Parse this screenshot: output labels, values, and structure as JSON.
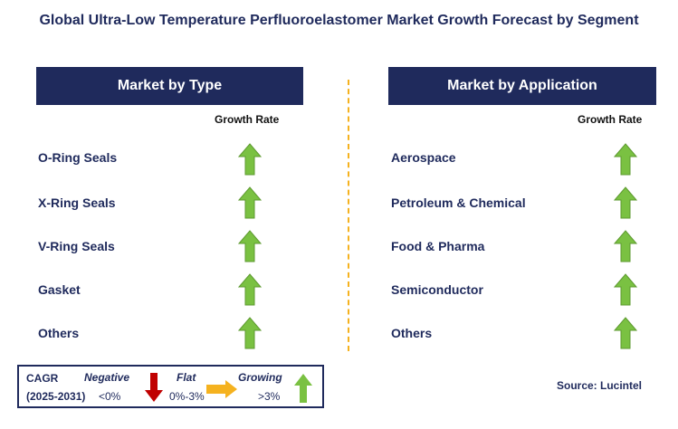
{
  "title": "Global Ultra-Low Temperature Perfluoroelastomer Market Growth Forecast by Segment",
  "left_panel": {
    "header": "Market by Type",
    "growth_label": "Growth Rate",
    "rows": [
      {
        "label": "O-Ring Seals",
        "trend": "growing"
      },
      {
        "label": "X-Ring Seals",
        "trend": "growing"
      },
      {
        "label": "V-Ring Seals",
        "trend": "growing"
      },
      {
        "label": "Gasket",
        "trend": "growing"
      },
      {
        "label": "Others",
        "trend": "growing"
      }
    ]
  },
  "right_panel": {
    "header": "Market by Application",
    "growth_label": "Growth Rate",
    "rows": [
      {
        "label": "Aerospace",
        "trend": "growing"
      },
      {
        "label": "Petroleum & Chemical",
        "trend": "growing"
      },
      {
        "label": "Food & Pharma",
        "trend": "growing"
      },
      {
        "label": "Semiconductor",
        "trend": "growing"
      },
      {
        "label": "Others",
        "trend": "growing"
      }
    ]
  },
  "legend": {
    "cagr": "CAGR",
    "period": "(2025-2031)",
    "negative": {
      "label": "Negative",
      "range": "<0%",
      "icon": "down-arrow-icon",
      "color": "#c00000"
    },
    "flat": {
      "label": "Flat",
      "range": "0%-3%",
      "icon": "right-arrow-icon",
      "color": "#f5b21f"
    },
    "growing": {
      "label": "Growing",
      "range": ">3%",
      "icon": "up-arrow-icon",
      "color": "#7ac142"
    }
  },
  "source": "Source: Lucintel",
  "colors": {
    "navy": "#1f2a5c",
    "green": "#7ac142",
    "divider": "#f5b21f"
  }
}
